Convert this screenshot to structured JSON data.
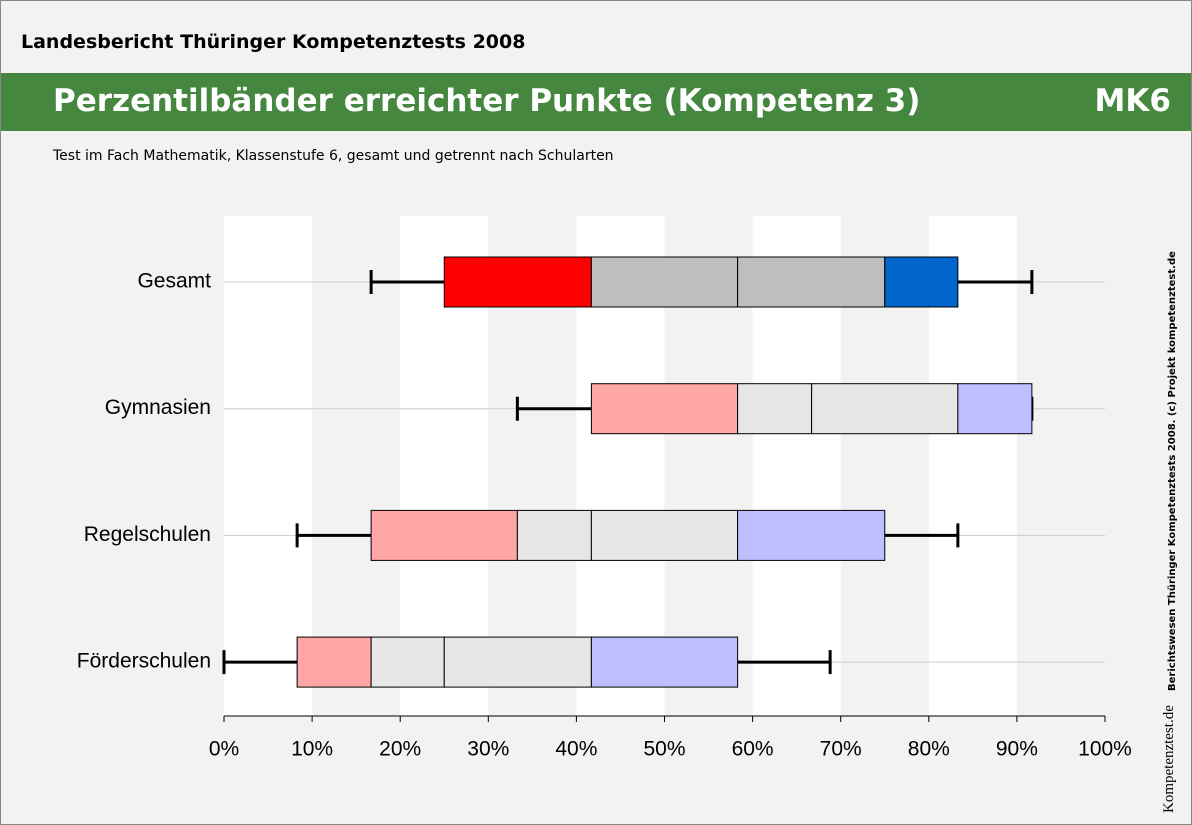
{
  "header": {
    "top": "Landesbericht Thüringer Kompetenztests 2008",
    "title": "Perzentilbänder erreichter Punkte (Kompetenz 3)",
    "code": "MK6",
    "subtitle": "Test im Fach Mathematik, Klassenstufe 6, gesamt und getrennt nach Schularten",
    "side_note": "Berichtswesen Thüringer Kompetenztests 2008. (c) Projekt kompetenztest.de",
    "logo": "Kompetenztest.de"
  },
  "chart_data": {
    "type": "percentile_band",
    "xlim": [
      0,
      100
    ],
    "xticks": [
      {
        "value": 0,
        "label": "0%"
      },
      {
        "value": 10,
        "label": "10%"
      },
      {
        "value": 20,
        "label": "20%"
      },
      {
        "value": 30,
        "label": "30%"
      },
      {
        "value": 40,
        "label": "40%"
      },
      {
        "value": 50,
        "label": "50%"
      },
      {
        "value": 60,
        "label": "60%"
      },
      {
        "value": 70,
        "label": "70%"
      },
      {
        "value": 80,
        "label": "80%"
      },
      {
        "value": 90,
        "label": "90%"
      },
      {
        "value": 100,
        "label": "100%"
      }
    ],
    "rows": [
      {
        "label": "Gesamt",
        "values": [
          16.7,
          25,
          41.7,
          58.3,
          75,
          83.3,
          91.7
        ],
        "colors": [
          "#ff0000",
          "#bebebe",
          "#bebebe",
          "#0066cc"
        ]
      },
      {
        "label": "Gymnasien",
        "values": [
          33.3,
          41.7,
          58.3,
          66.7,
          83.3,
          91.7,
          91.7
        ],
        "colors": [
          "#ffa6a6",
          "#e6e6e6",
          "#e6e6e6",
          "#bfbfff"
        ]
      },
      {
        "label": "Regelschulen",
        "values": [
          8.3,
          16.7,
          33.3,
          41.7,
          58.3,
          75,
          83.3
        ],
        "colors": [
          "#ffa6a6",
          "#e6e6e6",
          "#e6e6e6",
          "#bfbfff"
        ]
      },
      {
        "label": "Förderschulen",
        "values": [
          0,
          8.3,
          16.7,
          25,
          41.7,
          58.3,
          68.8
        ],
        "colors": [
          "#ffa6a6",
          "#e6e6e6",
          "#e6e6e6",
          "#bfbfff"
        ]
      }
    ]
  }
}
